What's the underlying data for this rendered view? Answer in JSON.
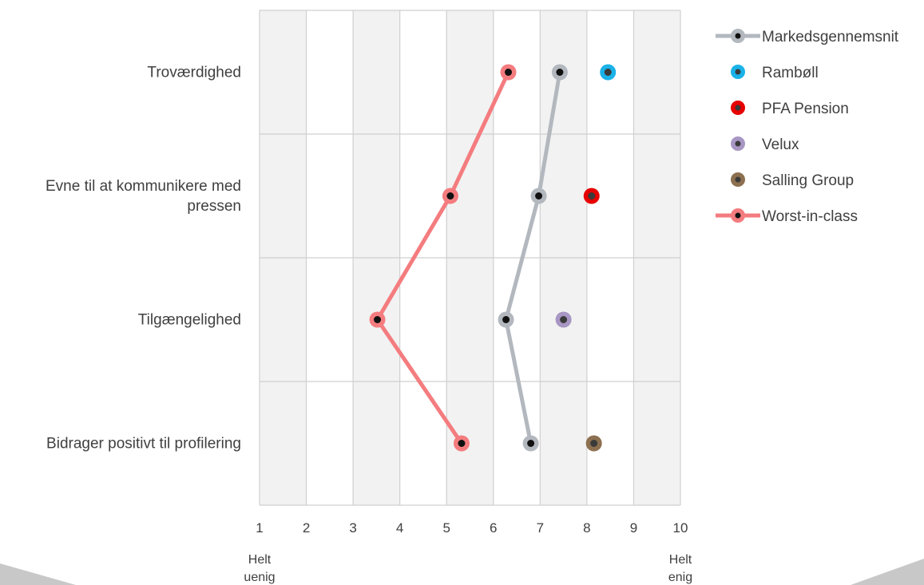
{
  "chart_data": {
    "type": "line",
    "orientation": "horizontal",
    "categories": [
      [
        "Troværdighed"
      ],
      [
        "Evne til at kommunikere med",
        "pressen"
      ],
      [
        "Tilgængelighed"
      ],
      [
        "Bidrager positivt til profilering"
      ]
    ],
    "xlim": [
      1,
      10
    ],
    "xticks": [
      "1",
      "2",
      "3",
      "4",
      "5",
      "6",
      "7",
      "8",
      "9",
      "10"
    ],
    "x_end_labels": {
      "left": [
        "Helt",
        "uenig"
      ],
      "right": [
        "Helt",
        "enig"
      ]
    },
    "grid": true,
    "legend_position": "right",
    "series": [
      {
        "name": "Markedsgennemsnit",
        "kind": "line",
        "color": "#B3B8BF",
        "values": [
          7.42,
          6.97,
          6.27,
          6.8
        ]
      },
      {
        "name": "Rambøll",
        "kind": "point",
        "color": "#1AB2E8",
        "values": [
          8.45,
          null,
          null,
          null
        ]
      },
      {
        "name": "PFA Pension",
        "kind": "point",
        "color": "#E60000",
        "values": [
          null,
          8.1,
          null,
          null
        ]
      },
      {
        "name": "Velux",
        "kind": "point",
        "color": "#A897C4",
        "values": [
          null,
          null,
          7.5,
          null
        ]
      },
      {
        "name": "Salling Group",
        "kind": "point",
        "color": "#8C7050",
        "values": [
          null,
          null,
          null,
          8.15
        ]
      },
      {
        "name": "Worst-in-class",
        "kind": "line",
        "color": "#F47C7F",
        "values": [
          6.32,
          5.08,
          3.52,
          5.32
        ]
      }
    ]
  }
}
